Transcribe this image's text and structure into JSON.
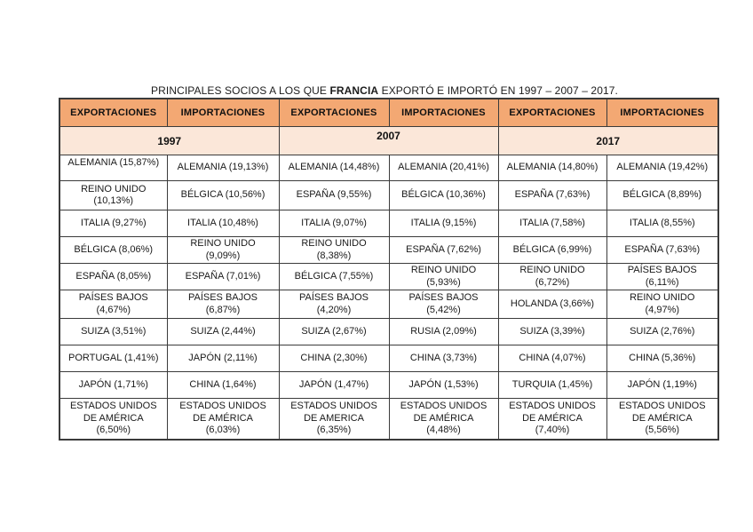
{
  "title": {
    "prefix": "PRINCIPALES SOCIOS A LOS QUE",
    "country": "FRANCIA",
    "suffix": "EXPORTÓ E IMPORTÓ EN 1997 – 2007 – 2017."
  },
  "colors": {
    "header_bg": "#F3A873",
    "year_bg": "#FBE7D9",
    "border": "#3B3B3B",
    "text": "#1F1F1F"
  },
  "table": {
    "column_headers": [
      "EXPORTACIONES",
      "IMPORTACIONES",
      "EXPORTACIONES",
      "IMPORTACIONES",
      "EXPORTACIONES",
      "IMPORTACIONES"
    ],
    "year_headers": [
      "1997",
      "2007",
      "2017"
    ],
    "rows": [
      [
        "ALEMANIA (15,87%)",
        "ALEMANIA (19,13%)",
        "ALEMANIA (14,48%)",
        "ALEMANIA (20,41%)",
        "ALEMANIA (14,80%)",
        "ALEMANIA (19,42%)"
      ],
      [
        "REINO UNIDO\n(10,13%)",
        "BÉLGICA (10,56%)",
        "ESPAÑA (9,55%)",
        "BÉLGICA (10,36%)",
        "ESPAÑA (7,63%)",
        "BÉLGICA (8,89%)"
      ],
      [
        "ITALIA (9,27%)",
        "ITALIA (10,48%)",
        "ITALIA (9,07%)",
        "ITALIA (9,15%)",
        "ITALIA (7,58%)",
        "ITALIA (8,55%)"
      ],
      [
        "BÉLGICA (8,06%)",
        "REINO UNIDO\n(9,09%)",
        "REINO UNIDO\n(8,38%)",
        "ESPAÑA (7,62%)",
        "BÉLGICA (6,99%)",
        "ESPAÑA (7,63%)"
      ],
      [
        "ESPAÑA (8,05%)",
        "ESPAÑA (7,01%)",
        "BÉLGICA (7,55%)",
        "REINO UNIDO\n(5,93%)",
        "REINO UNIDO\n(6,72%)",
        "PAÍSES BAJOS\n(6,11%)"
      ],
      [
        "PAÍSES BAJOS\n(4,67%)",
        "PAÍSES BAJOS\n(6,87%)",
        "PAÍSES BAJOS\n(4,20%)",
        "PAÍSES BAJOS\n(5,42%)",
        "HOLANDA (3,66%)",
        "REINO UNIDO\n(4,97%)"
      ],
      [
        "SUIZA (3,51%)",
        "SUIZA (2,44%)",
        "SUIZA (2,67%)",
        "RUSIA (2,09%)",
        "SUIZA (3,39%)",
        "SUIZA (2,76%)"
      ],
      [
        "PORTUGAL (1,41%)",
        "JAPÓN (2,11%)",
        "CHINA (2,30%)",
        "CHINA (3,73%)",
        "CHINA (4,07%)",
        "CHINA (5,36%)"
      ],
      [
        "JAPÓN (1,71%)",
        "CHINA (1,64%)",
        "JAPÓN (1,47%)",
        "JAPÓN (1,53%)",
        "TURQUIA (1,45%)",
        "JAPÓN (1,19%)"
      ],
      [
        "ESTADOS UNIDOS\nDE AMÉRICA\n(6,50%)",
        "ESTADOS UNIDOS\nDE AMÉRICA\n(6,03%)",
        "ESTADOS UNIDOS\nDE AMERICA\n(6,35%)",
        "ESTADOS UNIDOS\nDE AMÉRICA\n(4,48%)",
        "ESTADOS UNIDOS\nDE AMÉRICA\n(7,40%)",
        "ESTADOS UNIDOS\nDE AMÉRICA\n(5,56%)"
      ]
    ]
  }
}
